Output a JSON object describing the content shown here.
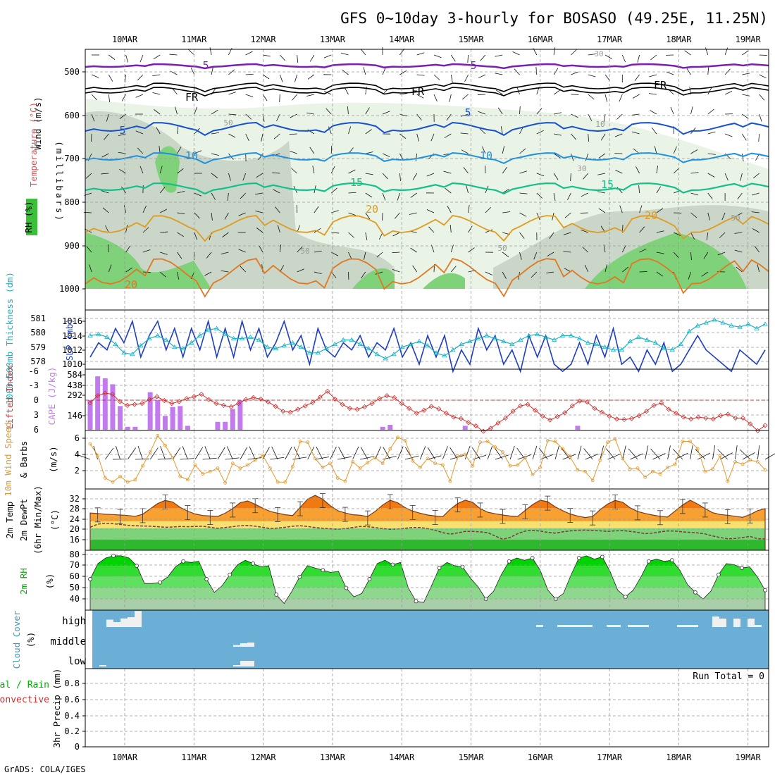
{
  "title": "GFS 0~10day 3-hourly for BOSASO (49.25E, 11.25N)",
  "credit": "GrADS: COLA/IGES",
  "colors": {
    "frame": "#000000",
    "rh_light": "#e9f3e6",
    "rh_mid": "#c9d6c8",
    "rh_dark": "#7fd17a",
    "temp5": "#7a1fb0",
    "tempFR": "#000000",
    "temp10": "#1550d0",
    "temp15": "#1e90e0",
    "temp20": "#14c08a",
    "temp25": "#e09a20",
    "temp30": "#e07820",
    "slp": "#1f3fbf",
    "thick": "#20b0c0",
    "li": "#d03030",
    "cape": "#c27aee",
    "wind": "#e09a30",
    "temp_hi": "#f07a10",
    "temp_mid": "#f8b040",
    "temp_lo": "#f8e070",
    "dew_band": "#3cc03c",
    "rh2m": "#00c800",
    "cloud": "#6baed6",
    "cloud_sub": "#f0f0f0"
  },
  "chart_data": {
    "type": "meteogram",
    "days": [
      "10MAR",
      "11MAR",
      "12MAR",
      "13MAR",
      "14MAR",
      "15MAR",
      "16MAR",
      "17MAR",
      "18MAR",
      "19MAR"
    ],
    "panels": [
      {
        "id": "upper",
        "ylabel_segments": [
          [
            "Wind",
            "#000000"
          ],
          [
            " (m/s)",
            "#000000"
          ]
        ],
        "ylabel_temp": [
          [
            "Temperature ",
            "#e05050"
          ],
          [
            "(°C)",
            "#e05050"
          ]
        ],
        "ylabel_mb": "(millibars)",
        "ylabel_rh": "RH (%)",
        "yticks": [
          "500",
          "600",
          "700",
          "800",
          "900",
          "1000"
        ],
        "isotherm_labels": [
          "5",
          "5",
          "FR",
          "FR",
          "FR",
          "5",
          "5",
          "10",
          "10",
          "15",
          "15",
          "20",
          "20",
          "20",
          "10",
          "30",
          "50",
          "50",
          "50",
          "50",
          "30"
        ]
      },
      {
        "id": "slp",
        "ylabel_left": "1000-500mb Thickness (dm)",
        "ylabel_right": "SLP (mb)",
        "yticks_left": [
          "578",
          "579",
          "580",
          "581"
        ],
        "yticks_right": [
          "1010",
          "1012",
          "1014",
          "1016"
        ],
        "slp": [
          1011,
          1013,
          1012,
          1015,
          1013,
          1016,
          1011,
          1014,
          1016,
          1012,
          1015,
          1011,
          1015,
          1012,
          1016,
          1011,
          1015,
          1011,
          1016,
          1012,
          1015,
          1011,
          1013,
          1016,
          1012,
          1014,
          1010,
          1015,
          1012,
          1011,
          1013,
          1012,
          1014,
          1011,
          1013,
          1012,
          1015,
          1011,
          1013,
          1010,
          1014,
          1011,
          1014,
          1009,
          1012,
          1010,
          1015,
          1012,
          1014,
          1010,
          1012,
          1009,
          1014,
          1011,
          1014,
          1010,
          1009,
          1010,
          1013,
          1010,
          1014,
          1011,
          1015,
          1010,
          1011,
          1009,
          1012,
          1010,
          1013,
          1009,
          1010,
          1012,
          1014,
          1012,
          1011,
          1010,
          1009,
          1012,
          1011,
          1010,
          1012
        ],
        "thickness": [
          579.8,
          579.9,
          579.7,
          579.2,
          578.6,
          578.5,
          579.1,
          579.6,
          579.8,
          579.5,
          579.0,
          578.9,
          579.3,
          579.8,
          580.2,
          580.3,
          579.9,
          579.6,
          579.6,
          579.7,
          579.5,
          579.0,
          578.9,
          579.1,
          579.3,
          579.0,
          578.6,
          578.6,
          578.9,
          579.2,
          579.5,
          579.5,
          579.2,
          578.9,
          578.5,
          578.2,
          578.5,
          579.0,
          579.2,
          579.4,
          579.1,
          578.6,
          578.4,
          578.8,
          579.2,
          579.4,
          579.6,
          579.8,
          579.6,
          579.4,
          579.2,
          579.5,
          579.8,
          579.9,
          579.7,
          579.5,
          579.8,
          579.8,
          579.6,
          579.3,
          579.2,
          579.0,
          578.8,
          578.8,
          579.4,
          579.7,
          579.5,
          579.3,
          578.9,
          578.8,
          579.2,
          580.1,
          580.5,
          580.7,
          580.9,
          580.7,
          580.5,
          580.4,
          580.6,
          580.3,
          580.6
        ]
      },
      {
        "id": "cape",
        "ylabel_left": "Lifted Index",
        "ylabel_right": "CAPE (J/kg)",
        "yticks_left": [
          "-6",
          "-3",
          "0",
          "3",
          "6"
        ],
        "yticks_right": [
          "146",
          "292",
          "438",
          "584"
        ],
        "cape": [
          300,
          540,
          520,
          460,
          240,
          30,
          30,
          0,
          380,
          300,
          140,
          230,
          240,
          40,
          0,
          0,
          0,
          80,
          80,
          210,
          300,
          0,
          0,
          0,
          0,
          0,
          0,
          0,
          0,
          0,
          0,
          0,
          0,
          0,
          0,
          0,
          0,
          0,
          0,
          30,
          50,
          0,
          0,
          0,
          0,
          0,
          0,
          0,
          0,
          0,
          40,
          0,
          0,
          0,
          0,
          0,
          0,
          0,
          0,
          0,
          0,
          0,
          0,
          0,
          0,
          40,
          0,
          0,
          0,
          0,
          0,
          0,
          0,
          0,
          0,
          0,
          0,
          0,
          0,
          0,
          0,
          0,
          0,
          0,
          0,
          0,
          0,
          0,
          0,
          0,
          0
        ],
        "lifted_index": [
          0.5,
          -1.0,
          -1.5,
          -1.3,
          0.2,
          1.0,
          0.8,
          0.6,
          -0.2,
          -0.8,
          0.0,
          0.6,
          0.2,
          -0.4,
          -0.8,
          -1.3,
          -0.2,
          0.6,
          1.0,
          1.3,
          0.6,
          -0.2,
          -0.6,
          -0.3,
          0.3,
          1.2,
          2.2,
          2.4,
          1.8,
          1.1,
          0.4,
          -0.7,
          -1.9,
          -0.3,
          0.8,
          1.6,
          1.8,
          1.3,
          0.6,
          -0.4,
          -1.0,
          -0.6,
          0.6,
          1.6,
          2.6,
          2.0,
          1.2,
          1.7,
          2.6,
          3.4,
          3.7,
          4.5,
          5.2,
          6.3,
          5.7,
          4.6,
          3.6,
          2.2,
          1.1,
          0.8,
          2.0,
          3.2,
          4.0,
          3.3,
          2.5,
          1.1,
          0.1,
          0.3,
          1.6,
          2.4,
          3.2,
          3.8,
          3.9,
          3.7,
          3.1,
          2.2,
          1.0,
          0.5,
          1.8,
          2.6,
          3.4,
          3.8,
          3.4,
          3.6,
          3.8,
          3.1,
          2.8,
          3.6,
          3.6,
          4.8,
          6.2,
          5.1
        ]
      },
      {
        "id": "wind10",
        "ylabel_orange": "10m Wind Speed",
        "ylabel_black": "& Barbs",
        "ylabel_unit": "(m/s)",
        "yticks": [
          "2",
          "4",
          "6"
        ],
        "speed": [
          5.2,
          3.8,
          1.0,
          0.5,
          1.2,
          0.5,
          0.8,
          2.5,
          4.2,
          6.2,
          5.0,
          3.5,
          1.2,
          0.8,
          2.6,
          1.5,
          1.8,
          2.2,
          0.4,
          2.8,
          2.2,
          2.6,
          3.2,
          3.8,
          2.2,
          0.5,
          0.5,
          2.4,
          5.5,
          5.4,
          3.4,
          2.3,
          2.8,
          1.0,
          0.6,
          3.0,
          2.2,
          2.9,
          3.5,
          2.8,
          4.6,
          6.0,
          5.6,
          3.1,
          2.3,
          3.4,
          2.8,
          2.6,
          0.6,
          3.7,
          3.9,
          2.5,
          5.4,
          5.5,
          4.8,
          4.2,
          2.5,
          2.6,
          3.5,
          1.4,
          2.3,
          5.6,
          5.5,
          4.6,
          3.6,
          2.0,
          1.8,
          0.7,
          3.2,
          5.4,
          5.8,
          3.4,
          2.1,
          2.2,
          1.1,
          1.8,
          1.5,
          2.3,
          2.7,
          5.5,
          5.5,
          4.6,
          1.8,
          2.1,
          3.7,
          0.6,
          3.0,
          2.7,
          3.2,
          3.0,
          2.0
        ]
      },
      {
        "id": "temp2m",
        "ylabel_black": "2m Temp",
        "ylabel_dew": "2m DewPt",
        "ylabel_minmax": "(6hr Min/Max)",
        "ylabel_unit": "(°C)",
        "yticks": [
          "16",
          "20",
          "24",
          "28",
          "32"
        ],
        "temp": [
          26.6,
          26.4,
          26.1,
          26.0,
          25.8,
          25.6,
          25.3,
          26.1,
          28.2,
          30.3,
          31.5,
          30.9,
          28.8,
          27.3,
          26.2,
          25.6,
          25.4,
          25.2,
          26.5,
          28.3,
          30.6,
          31.3,
          30.0,
          28.5,
          27.2,
          26.5,
          25.9,
          25.6,
          28.8,
          32.0,
          33.5,
          32.0,
          29.5,
          27.5,
          26.6,
          25.9,
          25.7,
          25.2,
          27.2,
          29.7,
          31.6,
          30.6,
          28.7,
          27.3,
          26.5,
          25.8,
          25.4,
          25.1,
          28.0,
          30.3,
          31.6,
          30.8,
          28.3,
          26.9,
          26.3,
          25.8,
          25.4,
          25.2,
          27.6,
          29.9,
          31.6,
          31.0,
          29.0,
          27.5,
          26.2,
          25.4,
          24.8,
          25.2,
          27.9,
          30.1,
          31.5,
          30.8,
          28.6,
          27.2,
          26.4,
          25.8,
          25.3,
          25.0,
          27.4,
          29.7,
          31.6,
          30.1,
          28.3,
          26.7,
          26.0,
          25.7,
          25.3,
          24.9,
          26.0,
          27.5,
          28.3
        ],
        "dewpt": [
          21.0,
          22.2,
          22.6,
          22.4,
          22.1,
          21.8,
          21.6,
          21.5,
          21.4,
          21.2,
          21.0,
          21.1,
          21.3,
          21.2,
          21.3,
          21.4,
          21.0,
          20.6,
          20.9,
          21.2,
          21.6,
          21.7,
          21.4,
          21.0,
          20.5,
          20.7,
          21.0,
          21.4,
          21.6,
          21.3,
          20.9,
          20.6,
          20.4,
          20.2,
          20.5,
          20.9,
          21.3,
          21.2,
          20.9,
          20.5,
          20.2,
          20.3,
          20.6,
          20.9,
          20.9,
          20.5,
          19.8,
          18.9,
          18.3,
          18.8,
          19.4,
          19.4,
          19.2,
          18.9,
          17.6,
          16.3,
          17.0,
          18.5,
          19.5,
          19.8,
          19.5,
          19.0,
          18.7,
          19.2,
          19.6,
          19.8,
          19.9,
          19.8,
          19.6,
          19.4,
          19.6,
          19.7,
          19.4,
          19.0,
          18.5,
          18.7,
          19.2,
          19.6,
          19.5,
          19.2,
          19.0,
          18.8,
          18.4,
          17.6,
          17.0,
          16.5,
          16.6,
          17.0,
          17.4,
          16.5,
          16.4
        ]
      },
      {
        "id": "rh2m",
        "ylabel_black": "2m RH",
        "ylabel_unit": "(%)",
        "yticks": [
          "40",
          "50",
          "60",
          "70",
          "80"
        ],
        "rh": [
          58,
          72,
          77,
          79,
          79,
          77,
          70,
          54,
          54,
          55,
          60,
          69,
          74,
          73,
          74,
          58,
          46,
          52,
          62,
          71,
          75,
          72,
          69,
          70,
          44,
          36,
          47,
          60,
          70,
          68,
          66,
          64,
          65,
          50,
          42,
          45,
          58,
          72,
          75,
          71,
          73,
          50,
          38,
          37,
          52,
          68,
          73,
          70,
          69,
          59,
          51,
          40,
          47,
          62,
          74,
          77,
          75,
          77,
          66,
          48,
          40,
          45,
          62,
          77,
          79,
          76,
          78,
          65,
          48,
          42,
          48,
          60,
          74,
          76,
          74,
          75,
          66,
          53,
          46,
          40,
          47,
          62,
          72,
          71,
          68,
          69,
          60,
          48
        ],
        "rh_markers": true
      },
      {
        "id": "cloud",
        "ylabel_left": "Cloud Cover",
        "ylabel_unit": "(%)",
        "row_labels": [
          "high",
          "middle",
          "low"
        ],
        "high": [
          0,
          0,
          30,
          20,
          35,
          40,
          65,
          0,
          0,
          0,
          0,
          0,
          0,
          0,
          0,
          0,
          0,
          0,
          0,
          0,
          0,
          0,
          0,
          0,
          0,
          0,
          0,
          0,
          0,
          0,
          0,
          0,
          0,
          0,
          0,
          0,
          0,
          0,
          0,
          0,
          0,
          0,
          0,
          0,
          0,
          0,
          0,
          0,
          0,
          0,
          0,
          0,
          0,
          0,
          0,
          0,
          0,
          0,
          0,
          0,
          0,
          0,
          0,
          0,
          0,
          0,
          0,
          0,
          0,
          0,
          0,
          0,
          0,
          0,
          0,
          0,
          0,
          0,
          0,
          0,
          0,
          0,
          0
        ],
        "high_late": [
          [
            63,
            5
          ],
          [
            66,
            5
          ],
          [
            67,
            5
          ],
          [
            68,
            5
          ],
          [
            69,
            5
          ],
          [
            70,
            5
          ],
          [
            73,
            5
          ],
          [
            74,
            5
          ],
          [
            76,
            5
          ],
          [
            77,
            5
          ],
          [
            78,
            5
          ],
          [
            83,
            5
          ],
          [
            84,
            5
          ],
          [
            85,
            5
          ],
          [
            88,
            25
          ],
          [
            89,
            20
          ],
          [
            91,
            20
          ],
          [
            93,
            20
          ],
          [
            94,
            5
          ]
        ],
        "middle": [
          [
            16,
            5
          ],
          [
            17,
            10
          ],
          [
            18,
            12
          ]
        ],
        "low": [
          [
            16,
            5
          ],
          [
            17,
            20
          ],
          [
            18,
            20
          ],
          [
            1,
            5
          ]
        ]
      },
      {
        "id": "precip",
        "ylabel_mix": [
          [
            "Total",
            "#00b000"
          ],
          [
            " / ",
            "#00b000"
          ],
          [
            "Rain",
            "#00b000"
          ]
        ],
        "ylabel_conv": "Convective",
        "ylabel_black": "3hr Precip (mm)",
        "yticks": [
          "0",
          "0.2",
          "0.4",
          "0.6",
          "0.8"
        ],
        "run_total": "Run Total = 0"
      }
    ]
  }
}
